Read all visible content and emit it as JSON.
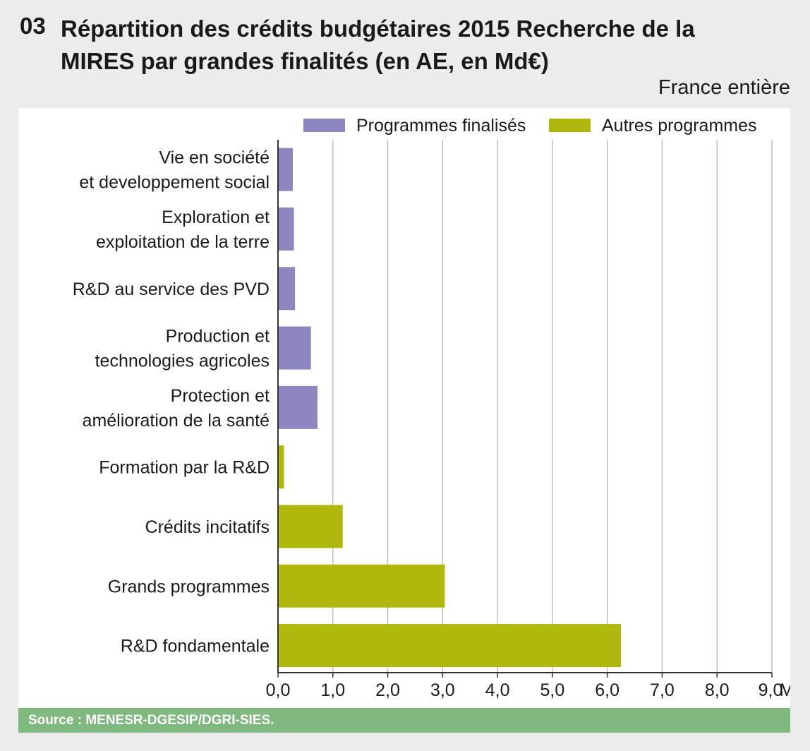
{
  "figure": {
    "number": "03",
    "title": "Répartition des crédits budgétaires 2015 Recherche de la MIRES par grandes finalités (en AE, en Md€)",
    "scope": "France entière",
    "source": "Source : MENESR-DGESIP/DGRI-SIES."
  },
  "chart_data": {
    "type": "bar",
    "orientation": "horizontal",
    "title": "Répartition des crédits budgétaires 2015 Recherche de la MIRES par grandes finalités (en AE, en Md€)",
    "xlabel": "Md€",
    "ylabel": "",
    "xlim": [
      0,
      9
    ],
    "x_ticks": [
      "0,0",
      "1,0",
      "2,0",
      "3,0",
      "4,0",
      "5,0",
      "6,0",
      "7,0",
      "8,0",
      "9,0"
    ],
    "x_unit": "Md€",
    "grid": true,
    "legend_position": "top",
    "series": [
      {
        "name": "Programmes finalisés",
        "color": "#8c87c0"
      },
      {
        "name": "Autres programmes",
        "color": "#b0b80e"
      }
    ],
    "categories": [
      {
        "label": [
          "Vie en société",
          "et developpement social"
        ],
        "value": 0.27,
        "series": "Programmes finalisés"
      },
      {
        "label": [
          "Exploration et",
          "exploitation de la terre"
        ],
        "value": 0.29,
        "series": "Programmes finalisés"
      },
      {
        "label": [
          "R&D au service des PVD"
        ],
        "value": 0.31,
        "series": "Programmes finalisés"
      },
      {
        "label": [
          "Production et",
          "technologies agricoles"
        ],
        "value": 0.6,
        "series": "Programmes finalisés"
      },
      {
        "label": [
          "Protection et",
          "amélioration de la santé"
        ],
        "value": 0.72,
        "series": "Programmes finalisés"
      },
      {
        "label": [
          "Formation par la R&D"
        ],
        "value": 0.11,
        "series": "Autres programmes"
      },
      {
        "label": [
          "Crédits incitatifs"
        ],
        "value": 1.18,
        "series": "Autres programmes"
      },
      {
        "label": [
          "Grands programmes"
        ],
        "value": 3.04,
        "series": "Autres programmes"
      },
      {
        "label": [
          "R&D fondamentale"
        ],
        "value": 6.25,
        "series": "Autres programmes"
      }
    ]
  }
}
